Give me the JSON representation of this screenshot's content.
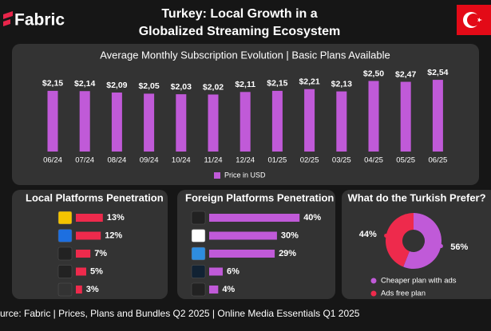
{
  "header": {
    "brand": "Fabric",
    "title_lines": [
      "Turkey: Local Growth in a",
      "Globalized Streaming Ecosystem"
    ]
  },
  "footer": "urce: Fabric | Prices, Plans and Bundles Q2 2025 | Online Media Essentials Q1 2025",
  "chart_data": [
    {
      "type": "bar",
      "title": "Average Monthly Subscription Evolution | Basic Plans Available",
      "categories": [
        "06/24",
        "07/24",
        "08/24",
        "09/24",
        "10/24",
        "11/24",
        "12/24",
        "01/25",
        "02/25",
        "03/25",
        "04/25",
        "05/25",
        "06/25"
      ],
      "series": [
        {
          "name": "Price in USD",
          "color": "#c05ad8",
          "values": [
            2.15,
            2.14,
            2.09,
            2.05,
            2.03,
            2.02,
            2.11,
            2.15,
            2.21,
            2.13,
            2.5,
            2.47,
            2.54
          ],
          "value_labels": [
            "$2,15",
            "$2,14",
            "$2,09",
            "$2,05",
            "$2,03",
            "$2,02",
            "$2,11",
            "$2,15",
            "$2,21",
            "$2,13",
            "$2,50",
            "$2,47",
            "$2,54"
          ]
        }
      ]
    },
    {
      "type": "hbar",
      "title": "Local Platforms Penetration",
      "color": "#ee2a4c",
      "values": [
        13,
        12,
        7,
        5,
        3
      ],
      "value_labels": [
        "13%",
        "12%",
        "7%",
        "5%",
        "3%"
      ]
    },
    {
      "type": "hbar",
      "title": "Foreign Platforms Penetration",
      "color": "#c05ad8",
      "values": [
        40,
        30,
        29,
        6,
        4
      ],
      "value_labels": [
        "40%",
        "30%",
        "29%",
        "6%",
        "4%"
      ]
    },
    {
      "type": "pie",
      "title": "What do the Turkish Prefer?",
      "categories": [
        "Cheaper plan with ads",
        "Ads free plan"
      ],
      "values": [
        56,
        44
      ],
      "value_labels": [
        "56%",
        "44%"
      ],
      "colors": [
        "#c05ad8",
        "#ee2a4c"
      ]
    }
  ]
}
